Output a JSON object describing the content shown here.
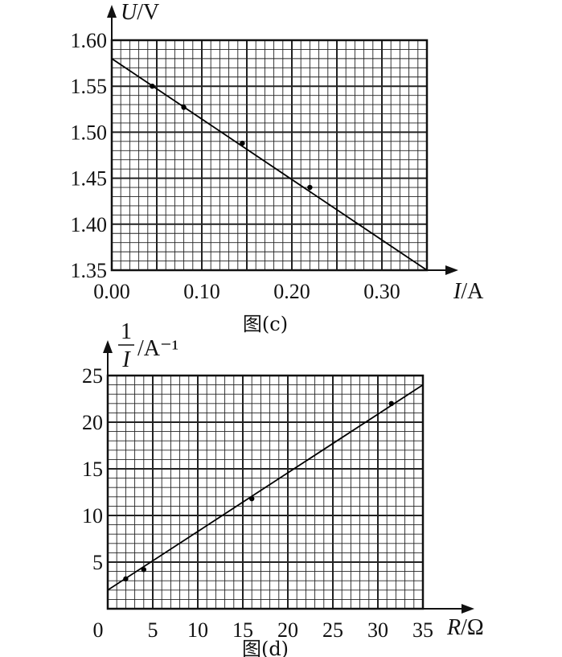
{
  "chart_data": [
    {
      "type": "scatter",
      "caption": "图(c)",
      "ylabel_var": "U",
      "ylabel_unit": "/V",
      "xlabel_var": "I",
      "xlabel_unit": "/A",
      "xlim": [
        0,
        0.35
      ],
      "ylim": [
        1.35,
        1.6
      ],
      "x_ticks": [
        "0.00",
        "0.10",
        "0.20",
        "0.30"
      ],
      "y_ticks": [
        "1.60",
        "1.55",
        "1.50",
        "1.45",
        "1.40",
        "1.35"
      ],
      "grid": true,
      "points": [
        {
          "x": 0.045,
          "y": 1.55
        },
        {
          "x": 0.08,
          "y": 1.527
        },
        {
          "x": 0.145,
          "y": 1.488
        },
        {
          "x": 0.22,
          "y": 1.44
        }
      ],
      "fit_line": {
        "x": [
          0,
          0.35
        ],
        "y": [
          1.58,
          1.35
        ]
      }
    },
    {
      "type": "scatter",
      "caption": "图(d)",
      "ylabel_var": "1/I",
      "ylabel_unit": "/A⁻¹",
      "xlabel_var": "R",
      "xlabel_unit": "/Ω",
      "xlim": [
        0,
        35
      ],
      "ylim": [
        0,
        25
      ],
      "x_ticks": [
        "0",
        "5",
        "10",
        "15",
        "20",
        "25",
        "30",
        "35"
      ],
      "y_ticks": [
        "25",
        "20",
        "15",
        "10",
        "5"
      ],
      "grid": true,
      "points": [
        {
          "x": 2,
          "y": 3.2
        },
        {
          "x": 4,
          "y": 4.2
        },
        {
          "x": 16,
          "y": 11.8
        },
        {
          "x": 31.5,
          "y": 22.0
        }
      ],
      "fit_line": {
        "x": [
          0,
          35
        ],
        "y": [
          2.0,
          24.0
        ]
      }
    }
  ]
}
